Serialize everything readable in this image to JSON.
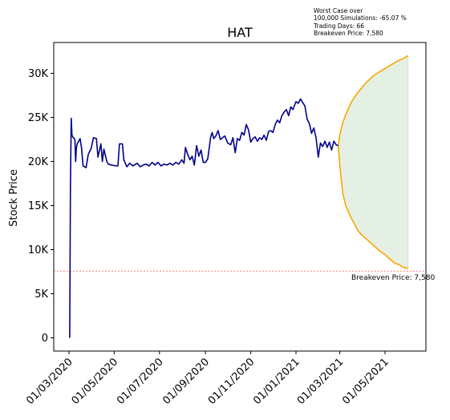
{
  "chart_data": {
    "type": "line",
    "title": "HAT",
    "xlabel": "",
    "ylabel": "Stock Price",
    "ylim": [
      -1500,
      33500
    ],
    "y_ticks": [
      0,
      5000,
      10000,
      15000,
      20000,
      25000,
      30000
    ],
    "y_tick_labels": [
      "0",
      "5K",
      "10K",
      "15K",
      "20K",
      "25K",
      "30K"
    ],
    "x_ticks": [
      "2020-03-01",
      "2020-05-01",
      "2020-07-01",
      "2020-09-01",
      "2020-11-01",
      "2021-01-01",
      "2021-03-01",
      "2021-05-01"
    ],
    "x_tick_labels": [
      "01/03/2020",
      "01/05/2020",
      "01/07/2020",
      "01/09/2020",
      "01/11/2020",
      "01/01/2021",
      "01/03/2021",
      "01/05/2021"
    ],
    "annotation": {
      "lines": [
        "Worst Case over",
        "100,000 Simulations: -65.07 %",
        "Trading Days: 66",
        "Breakeven Price: 7,580"
      ]
    },
    "breakeven": {
      "value": 7580,
      "label": "Breakeven Price: 7,580"
    },
    "colors": {
      "history": "#00008b",
      "projection": "#ffa500",
      "fill": "#e3f0e3",
      "breakeven": "#ff0000"
    },
    "history": [
      [
        "2020-03-02",
        0
      ],
      [
        "2020-03-03",
        17000
      ],
      [
        "2020-03-04",
        24900
      ],
      [
        "2020-03-05",
        23000
      ],
      [
        "2020-03-06",
        22800
      ],
      [
        "2020-03-09",
        22500
      ],
      [
        "2020-03-10",
        20000
      ],
      [
        "2020-03-11",
        21500
      ],
      [
        "2020-03-12",
        22000
      ],
      [
        "2020-03-16",
        22600
      ],
      [
        "2020-03-18",
        21500
      ],
      [
        "2020-03-20",
        19500
      ],
      [
        "2020-03-24",
        19300
      ],
      [
        "2020-03-27",
        20800
      ],
      [
        "2020-03-31",
        21500
      ],
      [
        "2020-04-03",
        22700
      ],
      [
        "2020-04-07",
        22600
      ],
      [
        "2020-04-09",
        20500
      ],
      [
        "2020-04-13",
        22000
      ],
      [
        "2020-04-15",
        20000
      ],
      [
        "2020-04-17",
        21400
      ],
      [
        "2020-04-21",
        20000
      ],
      [
        "2020-04-23",
        19700
      ],
      [
        "2020-04-27",
        19600
      ],
      [
        "2020-05-04",
        19500
      ],
      [
        "2020-05-06",
        19500
      ],
      [
        "2020-05-08",
        22000
      ],
      [
        "2020-05-12",
        22000
      ],
      [
        "2020-05-14",
        20200
      ],
      [
        "2020-05-18",
        19400
      ],
      [
        "2020-05-22",
        19800
      ],
      [
        "2020-05-26",
        19500
      ],
      [
        "2020-06-01",
        19800
      ],
      [
        "2020-06-05",
        19400
      ],
      [
        "2020-06-09",
        19600
      ],
      [
        "2020-06-13",
        19700
      ],
      [
        "2020-06-17",
        19500
      ],
      [
        "2020-06-21",
        19900
      ],
      [
        "2020-06-25",
        19600
      ],
      [
        "2020-06-29",
        19900
      ],
      [
        "2020-07-03",
        19500
      ],
      [
        "2020-07-07",
        19700
      ],
      [
        "2020-07-11",
        19600
      ],
      [
        "2020-07-15",
        19800
      ],
      [
        "2020-07-19",
        19600
      ],
      [
        "2020-07-23",
        19900
      ],
      [
        "2020-07-27",
        19700
      ],
      [
        "2020-07-31",
        20200
      ],
      [
        "2020-08-03",
        19800
      ],
      [
        "2020-08-05",
        21600
      ],
      [
        "2020-08-08",
        20800
      ],
      [
        "2020-08-11",
        20200
      ],
      [
        "2020-08-14",
        20600
      ],
      [
        "2020-08-17",
        19600
      ],
      [
        "2020-08-20",
        21800
      ],
      [
        "2020-08-23",
        20600
      ],
      [
        "2020-08-26",
        21300
      ],
      [
        "2020-08-29",
        19900
      ],
      [
        "2020-09-01",
        19900
      ],
      [
        "2020-09-04",
        20300
      ],
      [
        "2020-09-08",
        22800
      ],
      [
        "2020-09-10",
        23300
      ],
      [
        "2020-09-12",
        22600
      ],
      [
        "2020-09-15",
        22900
      ],
      [
        "2020-09-18",
        23500
      ],
      [
        "2020-09-21",
        22500
      ],
      [
        "2020-09-24",
        22700
      ],
      [
        "2020-09-27",
        22900
      ],
      [
        "2020-10-01",
        22100
      ],
      [
        "2020-10-05",
        21900
      ],
      [
        "2020-10-08",
        22700
      ],
      [
        "2020-10-11",
        21000
      ],
      [
        "2020-10-14",
        22600
      ],
      [
        "2020-10-17",
        22400
      ],
      [
        "2020-10-20",
        23300
      ],
      [
        "2020-10-23",
        23000
      ],
      [
        "2020-10-26",
        24200
      ],
      [
        "2020-10-29",
        23600
      ],
      [
        "2020-11-01",
        22200
      ],
      [
        "2020-11-04",
        22600
      ],
      [
        "2020-11-07",
        22800
      ],
      [
        "2020-11-10",
        22300
      ],
      [
        "2020-11-13",
        22700
      ],
      [
        "2020-11-16",
        22500
      ],
      [
        "2020-11-19",
        23000
      ],
      [
        "2020-11-22",
        22400
      ],
      [
        "2020-11-25",
        23400
      ],
      [
        "2020-11-28",
        23500
      ],
      [
        "2020-12-01",
        23300
      ],
      [
        "2020-12-04",
        24200
      ],
      [
        "2020-12-07",
        24700
      ],
      [
        "2020-12-10",
        24400
      ],
      [
        "2020-12-13",
        25200
      ],
      [
        "2020-12-16",
        25600
      ],
      [
        "2020-12-19",
        25900
      ],
      [
        "2020-12-22",
        25200
      ],
      [
        "2020-12-25",
        26200
      ],
      [
        "2020-12-28",
        25900
      ],
      [
        "2021-01-01",
        26800
      ],
      [
        "2021-01-04",
        26600
      ],
      [
        "2021-01-07",
        27100
      ],
      [
        "2021-01-10",
        26700
      ],
      [
        "2021-01-13",
        26300
      ],
      [
        "2021-01-16",
        24800
      ],
      [
        "2021-01-19",
        24300
      ],
      [
        "2021-01-22",
        23200
      ],
      [
        "2021-01-25",
        23800
      ],
      [
        "2021-01-28",
        22700
      ],
      [
        "2021-01-31",
        20500
      ],
      [
        "2021-02-03",
        22100
      ],
      [
        "2021-02-06",
        21700
      ],
      [
        "2021-02-09",
        22300
      ],
      [
        "2021-02-12",
        21600
      ],
      [
        "2021-02-15",
        22200
      ],
      [
        "2021-02-18",
        21300
      ],
      [
        "2021-02-21",
        22300
      ],
      [
        "2021-02-24",
        21900
      ],
      [
        "2021-02-27",
        21800
      ]
    ],
    "projection": {
      "dates": [
        "2021-02-27",
        "2021-03-01",
        "2021-03-05",
        "2021-03-09",
        "2021-03-13",
        "2021-03-17",
        "2021-03-21",
        "2021-03-25",
        "2021-03-29",
        "2021-04-02",
        "2021-04-06",
        "2021-04-10",
        "2021-04-14",
        "2021-04-18",
        "2021-04-22",
        "2021-04-26",
        "2021-04-30",
        "2021-05-04",
        "2021-05-08",
        "2021-05-12",
        "2021-05-16",
        "2021-05-20",
        "2021-05-24",
        "2021-05-28",
        "2021-06-01"
      ],
      "upper": [
        21800,
        23000,
        24400,
        25300,
        26100,
        26800,
        27300,
        27800,
        28200,
        28600,
        29000,
        29300,
        29600,
        29900,
        30100,
        30300,
        30500,
        30700,
        30900,
        31100,
        31300,
        31500,
        31600,
        31800,
        32000
      ],
      "lower": [
        21800,
        19600,
        16400,
        15000,
        14200,
        13500,
        12900,
        12200,
        11800,
        11500,
        11200,
        10900,
        10600,
        10300,
        10000,
        9700,
        9500,
        9200,
        8900,
        8600,
        8400,
        8300,
        8100,
        7900,
        7900
      ]
    }
  }
}
